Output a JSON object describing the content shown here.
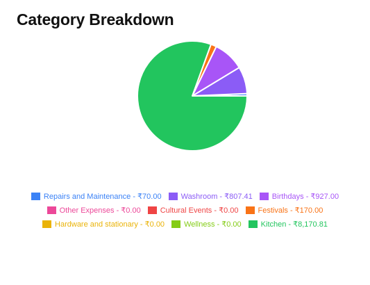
{
  "title": "Category Breakdown",
  "chart_data": {
    "type": "pie",
    "title": "Category Breakdown",
    "currency": "₹",
    "legend_position": "bottom",
    "slices": [
      {
        "label": "Repairs and Maintenance",
        "value": 70.0,
        "display": "₹70.00",
        "color": "#3b82f6"
      },
      {
        "label": "Washroom",
        "value": 807.41,
        "display": "₹807.41",
        "color": "#8b5cf6"
      },
      {
        "label": "Birthdays",
        "value": 927.0,
        "display": "₹927.00",
        "color": "#a855f7"
      },
      {
        "label": "Other Expenses",
        "value": 0.0,
        "display": "₹0.00",
        "color": "#ec4899"
      },
      {
        "label": "Cultural Events",
        "value": 0.0,
        "display": "₹0.00",
        "color": "#ef4444"
      },
      {
        "label": "Festivals",
        "value": 170.0,
        "display": "₹170.00",
        "color": "#f97316"
      },
      {
        "label": "Hardware and stationary",
        "value": 0.0,
        "display": "₹0.00",
        "color": "#eab308"
      },
      {
        "label": "Wellness",
        "value": 0.0,
        "display": "₹0.00",
        "color": "#84cc16"
      },
      {
        "label": "Kitchen",
        "value": 8170.81,
        "display": "₹8,170.81",
        "color": "#22c55e"
      }
    ]
  },
  "legend_rows": [
    [
      0,
      1,
      2
    ],
    [
      3,
      4,
      5
    ],
    [
      6,
      7,
      8
    ]
  ]
}
